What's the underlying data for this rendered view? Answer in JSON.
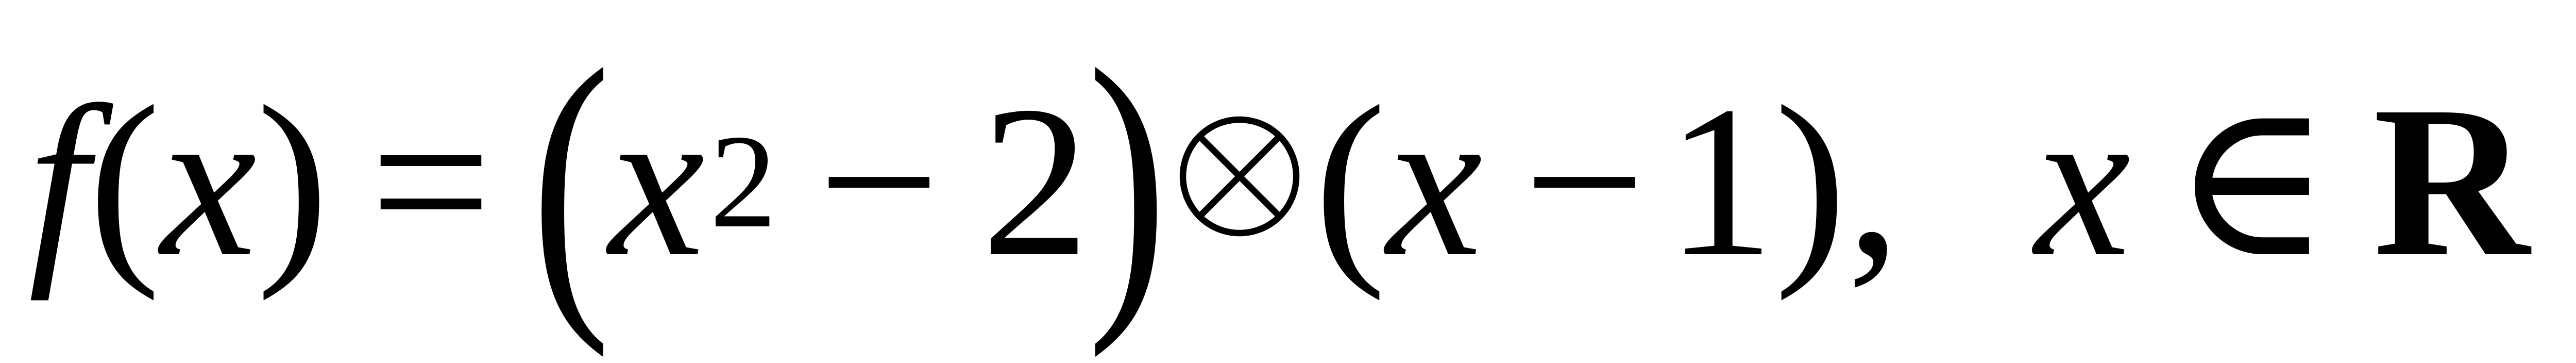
{
  "formula": {
    "f": "f",
    "lparen1": "(",
    "x1": "x",
    "rparen1": ")",
    "equals": "=",
    "big_lparen": "(",
    "x2": "x",
    "exp": "2",
    "minus1": "−",
    "two": "2",
    "big_rparen": ")",
    "otimes": "⊗",
    "lparen2": "(",
    "x3": "x",
    "minus2": "−",
    "one": "1",
    "rparen2": ")",
    "comma": ",",
    "x4": "x",
    "in": "∈",
    "R": "R"
  }
}
